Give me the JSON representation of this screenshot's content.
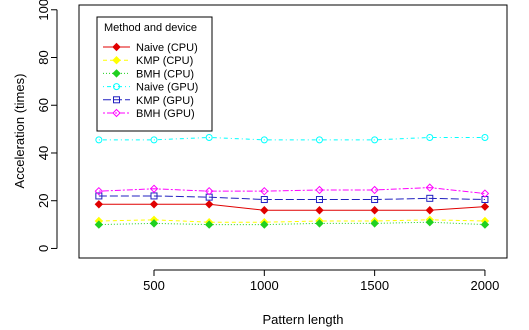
{
  "chart_data": {
    "type": "line",
    "title": "",
    "xlabel": "Pattern length",
    "ylabel": "Acceleration (times)",
    "x": [
      250,
      500,
      750,
      1000,
      1250,
      1500,
      1750,
      2000
    ],
    "xlim": [
      160,
      2100
    ],
    "ylim": [
      -4,
      102
    ],
    "xticks": [
      500,
      1000,
      1500,
      2000
    ],
    "yticks": [
      0,
      20,
      40,
      60,
      80,
      100
    ],
    "grid": false,
    "legend": {
      "title": "Method and device",
      "placement": "top-left"
    },
    "series": [
      {
        "name": "Naive (CPU)",
        "color": "#e00000",
        "dash": "solid",
        "marker": "diamond-filled",
        "values": [
          18.5,
          18.5,
          18.5,
          16.0,
          16.0,
          16.0,
          16.0,
          17.5
        ]
      },
      {
        "name": "KMP (CPU)",
        "color": "#ffff00",
        "dash": "dashed",
        "marker": "diamond-filled",
        "values": [
          11.5,
          12.0,
          11.0,
          11.0,
          11.5,
          11.5,
          12.0,
          11.5
        ]
      },
      {
        "name": "BMH (CPU)",
        "color": "#20d020",
        "dash": "dotted",
        "marker": "diamond-filled",
        "values": [
          10.0,
          10.5,
          10.0,
          10.0,
          10.5,
          10.5,
          11.0,
          10.0
        ]
      },
      {
        "name": "Naive (GPU)",
        "color": "#00ffff",
        "dash": "dotdash",
        "marker": "circle-open",
        "values": [
          45.5,
          45.5,
          46.5,
          45.5,
          45.5,
          45.5,
          46.5,
          46.5
        ]
      },
      {
        "name": "KMP (GPU)",
        "color": "#2020c0",
        "dash": "longdash",
        "marker": "square-open",
        "values": [
          22.0,
          22.0,
          21.5,
          20.5,
          20.5,
          20.5,
          21.0,
          20.5
        ]
      },
      {
        "name": "BMH (GPU)",
        "color": "#ff00ff",
        "dash": "twodash",
        "marker": "diamond-open",
        "values": [
          24.0,
          25.0,
          24.0,
          24.0,
          24.5,
          24.5,
          25.5,
          23.0
        ]
      }
    ]
  }
}
